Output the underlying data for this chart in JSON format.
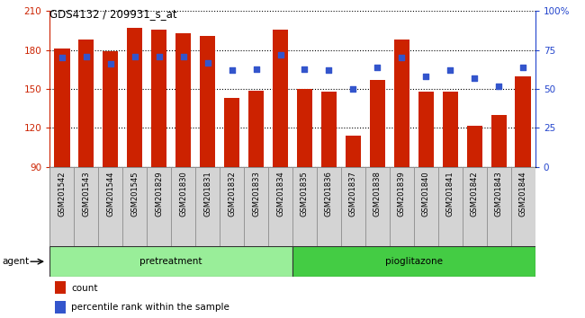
{
  "title": "GDS4132 / 209931_s_at",
  "samples": [
    "GSM201542",
    "GSM201543",
    "GSM201544",
    "GSM201545",
    "GSM201829",
    "GSM201830",
    "GSM201831",
    "GSM201832",
    "GSM201833",
    "GSM201834",
    "GSM201835",
    "GSM201836",
    "GSM201837",
    "GSM201838",
    "GSM201839",
    "GSM201840",
    "GSM201841",
    "GSM201842",
    "GSM201843",
    "GSM201844"
  ],
  "count_values": [
    181,
    188,
    179,
    197,
    196,
    193,
    191,
    143,
    149,
    196,
    150,
    148,
    114,
    157,
    188,
    148,
    148,
    122,
    130,
    160
  ],
  "percentile_values": [
    70,
    71,
    66,
    71,
    71,
    71,
    67,
    62,
    63,
    72,
    63,
    62,
    50,
    64,
    70,
    58,
    62,
    57,
    52,
    64
  ],
  "pretreatment_count": 10,
  "pioglitazone_count": 10,
  "ylim_left": [
    90,
    210
  ],
  "ylim_right": [
    0,
    100
  ],
  "yticks_left": [
    90,
    120,
    150,
    180,
    210
  ],
  "yticks_right": [
    0,
    25,
    50,
    75,
    100
  ],
  "ytick_labels_right": [
    "0",
    "25",
    "50",
    "75",
    "100%"
  ],
  "bar_color": "#cc2200",
  "dot_color": "#3355cc",
  "cell_bg": "#d4d4d4",
  "cell_border": "#888888",
  "green_light": "#99ee99",
  "green_dark": "#44cc44",
  "plot_bg": "#ffffff",
  "agent_label": "agent",
  "group1_label": "pretreatment",
  "group2_label": "pioglitazone",
  "legend_count": "count",
  "legend_pct": "percentile rank within the sample",
  "left_axis_color": "#cc2200",
  "right_axis_color": "#2244cc"
}
